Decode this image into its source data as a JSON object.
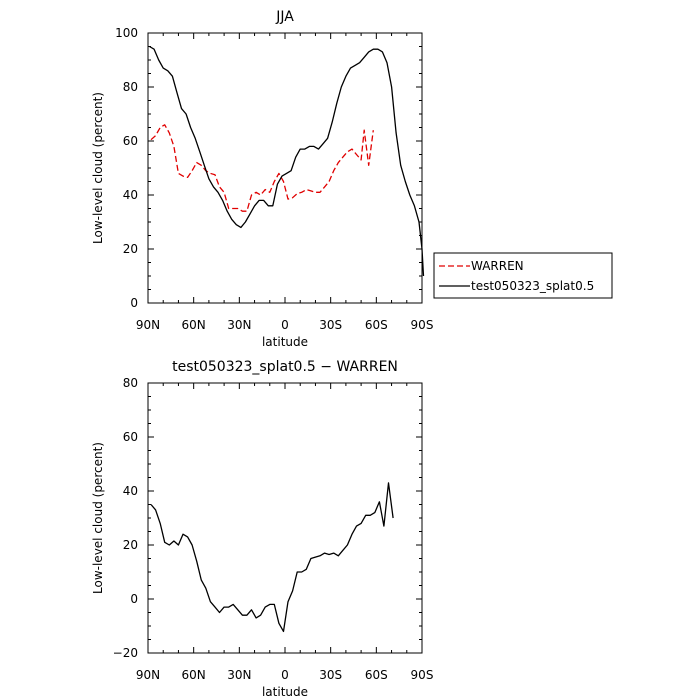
{
  "chart_data": [
    {
      "type": "line",
      "title": "JJA",
      "xlabel": "latitude",
      "ylabel": "Low-level cloud (percent)",
      "xlim": [
        90,
        -90
      ],
      "ylim": [
        0,
        100
      ],
      "x_ticks": [
        90,
        60,
        30,
        0,
        -30,
        -60,
        -90
      ],
      "x_tick_labels": [
        "90N",
        "60N",
        "30N",
        "0",
        "30S",
        "60S",
        "90S"
      ],
      "y_ticks": [
        0,
        20,
        40,
        60,
        80,
        100
      ],
      "y_tick_labels": [
        "0",
        "20",
        "40",
        "60",
        "80",
        "100"
      ],
      "grid": false,
      "legend_position": "right",
      "series": [
        {
          "name": "WARREN",
          "color": "#e00000",
          "dash": "dashed",
          "points": [
            [
              88,
              60.5
            ],
            [
              85,
              62
            ],
            [
              82,
              65
            ],
            [
              79,
              66
            ],
            [
              76,
              63
            ],
            [
              73,
              58
            ],
            [
              70,
              48
            ],
            [
              67,
              47
            ],
            [
              64,
              46.5
            ],
            [
              61,
              49
            ],
            [
              58,
              52
            ],
            [
              55,
              51
            ],
            [
              52,
              49
            ],
            [
              49,
              48
            ],
            [
              46,
              47.5
            ],
            [
              43,
              43
            ],
            [
              40,
              41
            ],
            [
              37,
              35
            ],
            [
              34,
              35
            ],
            [
              31,
              35
            ],
            [
              28,
              34
            ],
            [
              25,
              34
            ],
            [
              22,
              40
            ],
            [
              19,
              41
            ],
            [
              16,
              40
            ],
            [
              13,
              42
            ],
            [
              10,
              41
            ],
            [
              7,
              45
            ],
            [
              4,
              48
            ],
            [
              1,
              45
            ],
            [
              -2,
              38.5
            ],
            [
              -5,
              39
            ],
            [
              -8,
              40.5
            ],
            [
              -11,
              41
            ],
            [
              -14,
              42
            ],
            [
              -17,
              41.5
            ],
            [
              -20,
              41
            ],
            [
              -23,
              41
            ],
            [
              -26,
              43
            ],
            [
              -29,
              45
            ],
            [
              -32,
              49
            ],
            [
              -35,
              52
            ],
            [
              -38,
              54
            ],
            [
              -41,
              56
            ],
            [
              -44,
              57
            ],
            [
              -47,
              55
            ],
            [
              -50,
              53
            ],
            [
              -52,
              64
            ],
            [
              -55,
              51
            ],
            [
              -58,
              64
            ]
          ]
        },
        {
          "name": "test050323_splat0.5",
          "color": "#000000",
          "dash": "solid",
          "points": [
            [
              89,
              95
            ],
            [
              86,
              94
            ],
            [
              83,
              90
            ],
            [
              80,
              87
            ],
            [
              77,
              86
            ],
            [
              74,
              84
            ],
            [
              71,
              78
            ],
            [
              68,
              72
            ],
            [
              65,
              70
            ],
            [
              62,
              65
            ],
            [
              59,
              61
            ],
            [
              56,
              56
            ],
            [
              53,
              51
            ],
            [
              50,
              46
            ],
            [
              47,
              43
            ],
            [
              44,
              41
            ],
            [
              41,
              38
            ],
            [
              38,
              34
            ],
            [
              35,
              31
            ],
            [
              32,
              29
            ],
            [
              29,
              28
            ],
            [
              26,
              30
            ],
            [
              23,
              33
            ],
            [
              20,
              36
            ],
            [
              17,
              38
            ],
            [
              14,
              38
            ],
            [
              11,
              36
            ],
            [
              8,
              36
            ],
            [
              5,
              44
            ],
            [
              2,
              47
            ],
            [
              -1,
              48
            ],
            [
              -4,
              49
            ],
            [
              -7,
              54
            ],
            [
              -10,
              57
            ],
            [
              -13,
              57
            ],
            [
              -16,
              58
            ],
            [
              -19,
              58
            ],
            [
              -22,
              57
            ],
            [
              -25,
              59
            ],
            [
              -28,
              61
            ],
            [
              -31,
              67
            ],
            [
              -34,
              74
            ],
            [
              -37,
              80
            ],
            [
              -40,
              84
            ],
            [
              -43,
              87
            ],
            [
              -46,
              88
            ],
            [
              -49,
              89
            ],
            [
              -52,
              91
            ],
            [
              -55,
              93
            ],
            [
              -58,
              94
            ],
            [
              -61,
              94
            ],
            [
              -64,
              93
            ],
            [
              -67,
              89
            ],
            [
              -70,
              80
            ],
            [
              -73,
              63
            ],
            [
              -76,
              51
            ],
            [
              -79,
              45
            ],
            [
              -82,
              40
            ],
            [
              -85,
              36
            ],
            [
              -88,
              30
            ],
            [
              -90,
              20
            ],
            [
              -91,
              10
            ]
          ]
        }
      ]
    },
    {
      "type": "line",
      "title": "test050323_splat0.5 − WARREN",
      "xlabel": "latitude",
      "ylabel": "Low-level cloud (percent)",
      "xlim": [
        90,
        -90
      ],
      "ylim": [
        -20,
        80
      ],
      "x_ticks": [
        90,
        60,
        30,
        0,
        -30,
        -60,
        -90
      ],
      "x_tick_labels": [
        "90N",
        "60N",
        "30N",
        "0",
        "30S",
        "60S",
        "90S"
      ],
      "y_ticks": [
        -20,
        0,
        20,
        40,
        60,
        80
      ],
      "y_tick_labels": [
        "−20",
        "0",
        "20",
        "40",
        "60",
        "80"
      ],
      "grid": false,
      "series": [
        {
          "color": "#000000",
          "dash": "solid",
          "points": [
            [
              88,
              35
            ],
            [
              85,
              33
            ],
            [
              82,
              28
            ],
            [
              79,
              21
            ],
            [
              76,
              20
            ],
            [
              73,
              21.5
            ],
            [
              70,
              20
            ],
            [
              67,
              24
            ],
            [
              64,
              23
            ],
            [
              61,
              20
            ],
            [
              58,
              14
            ],
            [
              55,
              7
            ],
            [
              52,
              4
            ],
            [
              49,
              -1
            ],
            [
              46,
              -3
            ],
            [
              43,
              -5
            ],
            [
              40,
              -3
            ],
            [
              37,
              -3
            ],
            [
              34,
              -2
            ],
            [
              31,
              -4
            ],
            [
              28,
              -6
            ],
            [
              25,
              -6
            ],
            [
              22,
              -4
            ],
            [
              19,
              -7
            ],
            [
              16,
              -6
            ],
            [
              13,
              -3
            ],
            [
              10,
              -2
            ],
            [
              7,
              -2
            ],
            [
              4,
              -9
            ],
            [
              1,
              -12
            ],
            [
              -2,
              -1
            ],
            [
              -5,
              3
            ],
            [
              -8,
              10
            ],
            [
              -11,
              10
            ],
            [
              -14,
              11
            ],
            [
              -17,
              15
            ],
            [
              -20,
              15.5
            ],
            [
              -23,
              16
            ],
            [
              -26,
              17
            ],
            [
              -29,
              16.5
            ],
            [
              -32,
              17
            ],
            [
              -35,
              16
            ],
            [
              -38,
              18
            ],
            [
              -41,
              20
            ],
            [
              -44,
              24
            ],
            [
              -47,
              27
            ],
            [
              -50,
              28
            ],
            [
              -53,
              31
            ],
            [
              -56,
              31
            ],
            [
              -59,
              32
            ],
            [
              -62,
              36
            ],
            [
              -65,
              27
            ],
            [
              -68,
              43
            ],
            [
              -71,
              30
            ]
          ]
        }
      ]
    }
  ]
}
